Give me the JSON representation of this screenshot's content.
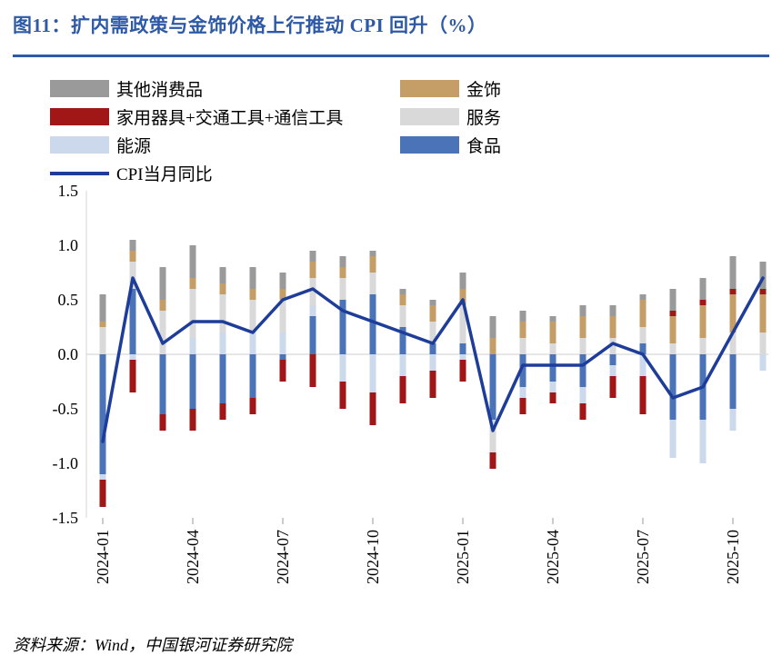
{
  "title": "图11：扩内需政策与金饰价格上行推动 CPI 回升（%）",
  "source": "资料来源：Wind，中国银河证券研究院",
  "colors": {
    "title_blue": "#2e59a7",
    "rule_blue": "#2e59a7",
    "line_navy": "#1d3d99",
    "others_gray": "#9a9a9a",
    "gold_tan": "#c59d66",
    "appliances_red": "#a11616",
    "services_lightgray": "#d9d9d9",
    "energy_lavender": "#ccd8ec",
    "food_blue": "#4a73b8"
  },
  "legend": {
    "items": [
      {
        "label": "其他消费品"
      },
      {
        "label": "金饰"
      },
      {
        "label": "家用器具+交通工具+通信工具"
      },
      {
        "label": "服务"
      },
      {
        "label": "能源"
      },
      {
        "label": "食品"
      }
    ],
    "line_label": "CPI当月同比"
  },
  "chart_data": {
    "type": "bar",
    "stacked": true,
    "title": "图11：扩内需政策与金饰价格上行推动 CPI 回升（%）",
    "xlabel": "",
    "ylabel": "",
    "ylim": [
      -1.5,
      1.5
    ],
    "y_ticks": [
      1.5,
      1.0,
      0.5,
      0.0,
      -0.5,
      -1.0,
      -1.5
    ],
    "grid": "zero-line-only",
    "legend_position": "top-left",
    "x": [
      "2024-01",
      "2024-02",
      "2024-03",
      "2024-04",
      "2024-05",
      "2024-06",
      "2024-07",
      "2024-08",
      "2024-09",
      "2024-10",
      "2024-11",
      "2024-12",
      "2025-01",
      "2025-02",
      "2025-03",
      "2025-04",
      "2025-05",
      "2025-06",
      "2025-07",
      "2025-08",
      "2025-09",
      "2025-10",
      "2025-11"
    ],
    "x_tick_labels": [
      "2024-01",
      "2024-04",
      "2024-07",
      "2024-10",
      "2025-01",
      "2025-04",
      "2025-07",
      "2025-10"
    ],
    "series": [
      {
        "name": "食品",
        "color": "#4a73b8",
        "values": [
          -1.1,
          0.6,
          -0.55,
          -0.5,
          -0.45,
          -0.4,
          -0.05,
          0.35,
          0.5,
          0.55,
          0.25,
          0.1,
          0.1,
          -0.6,
          -0.3,
          -0.25,
          -0.3,
          -0.1,
          0.1,
          -0.6,
          -0.6,
          -0.5,
          0.0
        ]
      },
      {
        "name": "能源",
        "color": "#ccd8ec",
        "values": [
          -0.05,
          -0.05,
          0.0,
          0.15,
          0.2,
          0.2,
          0.2,
          0.1,
          -0.25,
          -0.35,
          -0.2,
          -0.15,
          -0.05,
          -0.05,
          -0.1,
          -0.1,
          -0.15,
          -0.1,
          -0.2,
          -0.35,
          -0.4,
          -0.2,
          -0.15
        ]
      },
      {
        "name": "服务",
        "color": "#d9d9d9",
        "values": [
          0.25,
          0.25,
          0.4,
          0.45,
          0.35,
          0.3,
          0.3,
          0.25,
          0.2,
          0.2,
          0.2,
          0.2,
          0.35,
          -0.25,
          0.15,
          0.1,
          0.15,
          0.15,
          0.15,
          0.1,
          0.15,
          0.2,
          0.2
        ]
      },
      {
        "name": "金饰",
        "color": "#c59d66",
        "values": [
          0.05,
          0.1,
          0.1,
          0.1,
          0.1,
          0.1,
          0.1,
          0.15,
          0.1,
          0.15,
          0.1,
          0.15,
          0.15,
          0.15,
          0.15,
          0.2,
          0.2,
          0.2,
          0.25,
          0.25,
          0.3,
          0.35,
          0.35
        ]
      },
      {
        "name": "家用器具+交通工具+通信工具",
        "color": "#a11616",
        "values": [
          -0.25,
          -0.3,
          -0.15,
          -0.2,
          -0.15,
          -0.15,
          -0.2,
          -0.3,
          -0.25,
          -0.3,
          -0.25,
          -0.25,
          -0.2,
          -0.15,
          -0.15,
          -0.1,
          -0.15,
          -0.2,
          -0.35,
          0.05,
          0.05,
          0.05,
          0.05
        ]
      },
      {
        "name": "其他消费品",
        "color": "#9a9a9a",
        "values": [
          0.25,
          0.1,
          0.3,
          0.3,
          0.15,
          0.2,
          0.15,
          0.1,
          0.1,
          0.05,
          0.05,
          0.05,
          0.15,
          0.2,
          0.1,
          0.05,
          0.1,
          0.1,
          0.05,
          0.2,
          0.2,
          0.3,
          0.25
        ]
      }
    ],
    "line_series": {
      "name": "CPI当月同比",
      "color": "#1d3d99",
      "values": [
        -0.8,
        0.7,
        0.1,
        0.3,
        0.3,
        0.2,
        0.5,
        0.6,
        0.4,
        0.3,
        0.2,
        0.1,
        0.5,
        -0.7,
        -0.1,
        -0.1,
        -0.1,
        0.1,
        0.0,
        -0.4,
        -0.3,
        0.2,
        0.7
      ]
    }
  }
}
